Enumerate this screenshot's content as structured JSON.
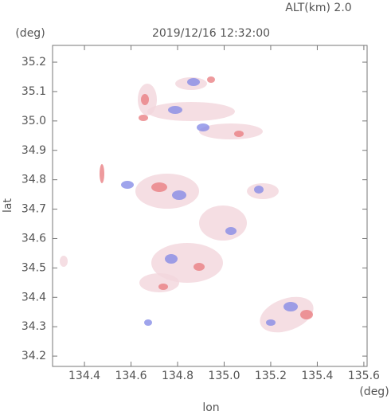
{
  "chart_data": {
    "type": "radar-map",
    "title": "2019/12/16 12:32:00",
    "subtitle": "ALT(km) 2.0",
    "x_label": "lon",
    "y_label": "lat",
    "x_unit": "(deg)",
    "y_unit": "(deg)",
    "xlim": [
      134.263,
      135.614
    ],
    "ylim": [
      34.165,
      35.257
    ],
    "xticks": [
      134.4,
      134.6,
      134.8,
      {
        "value": 135.0,
        "label": "135.0"
      },
      135.2,
      135.4,
      135.6
    ],
    "yticks": [
      34.2,
      34.3,
      34.4,
      34.5,
      34.6,
      34.7,
      34.8,
      34.9,
      {
        "value": 35.0,
        "label": "35.0"
      },
      35.1,
      35.2
    ]
  }
}
